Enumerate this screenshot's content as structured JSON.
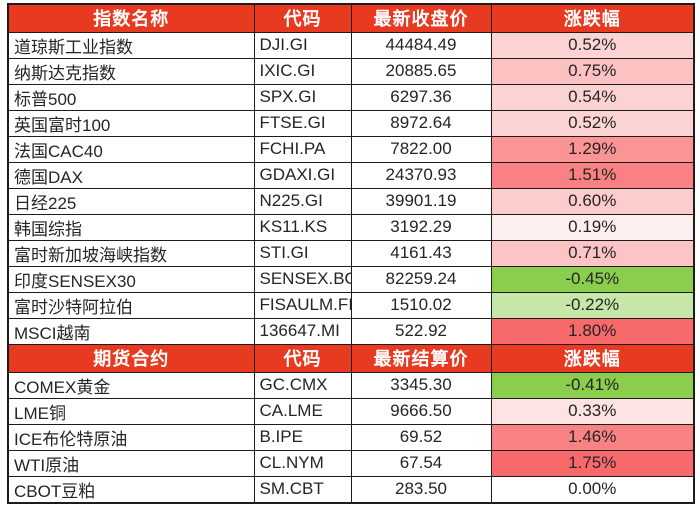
{
  "style": {
    "header_bg": "#E83A21",
    "header_fg": "#FFFFFF",
    "border_color": "#1C1C1C",
    "text_color": "#252525"
  },
  "chart_data": {
    "type": "table",
    "conditional_format": {
      "positive_max_color": "#F8696B",
      "negative_max_color": "#8BCD4C",
      "zero_color": "#FFFFFF",
      "rule": "pct cell background shade scales linearly from white with |pct| relative to each section's max gain (red) or max loss (green)"
    },
    "sections": [
      {
        "headers": [
          "指数名称",
          "代码",
          "最新收盘价",
          "涨跌幅"
        ],
        "rows": [
          {
            "name": "道琼斯工业指数",
            "code": "DJI.GI",
            "price": "44484.49",
            "pct": "0.52%"
          },
          {
            "name": "纳斯达克指数",
            "code": "IXIC.GI",
            "price": "20885.65",
            "pct": "0.75%"
          },
          {
            "name": "标普500",
            "code": "SPX.GI",
            "price": "6297.36",
            "pct": "0.54%"
          },
          {
            "name": "英国富时100",
            "code": "FTSE.GI",
            "price": "8972.64",
            "pct": "0.52%"
          },
          {
            "name": "法国CAC40",
            "code": "FCHI.PA",
            "price": "7822.00",
            "pct": "1.29%"
          },
          {
            "name": "德国DAX",
            "code": "GDAXI.GI",
            "price": "24370.93",
            "pct": "1.51%"
          },
          {
            "name": "日经225",
            "code": "N225.GI",
            "price": "39901.19",
            "pct": "0.60%"
          },
          {
            "name": "韩国综指",
            "code": "KS11.KS",
            "price": "3192.29",
            "pct": "0.19%"
          },
          {
            "name": "富时新加坡海峡指数",
            "code": "STI.GI",
            "price": "4161.43",
            "pct": "0.71%"
          },
          {
            "name": "印度SENSEX30",
            "code": "SENSEX.BO",
            "price": "82259.24",
            "pct": "-0.45%"
          },
          {
            "name": "富时沙特阿拉伯",
            "code": "FISAULM.FI",
            "price": "1510.02",
            "pct": "-0.22%"
          },
          {
            "name": "MSCI越南",
            "code": "136647.MI",
            "price": "522.92",
            "pct": "1.80%"
          }
        ]
      },
      {
        "headers": [
          "期货合约",
          "代码",
          "最新结算价",
          "涨跌幅"
        ],
        "rows": [
          {
            "name": "COMEX黄金",
            "code": "GC.CMX",
            "price": "3345.30",
            "pct": "-0.41%"
          },
          {
            "name": "LME铜",
            "code": "CA.LME",
            "price": "9666.50",
            "pct": "0.33%"
          },
          {
            "name": "ICE布伦特原油",
            "code": "B.IPE",
            "price": "69.52",
            "pct": "1.46%"
          },
          {
            "name": "WTI原油",
            "code": "CL.NYM",
            "price": "67.54",
            "pct": "1.75%"
          },
          {
            "name": "CBOT豆粕",
            "code": "SM.CBT",
            "price": "283.50",
            "pct": "0.00%"
          }
        ]
      }
    ]
  }
}
